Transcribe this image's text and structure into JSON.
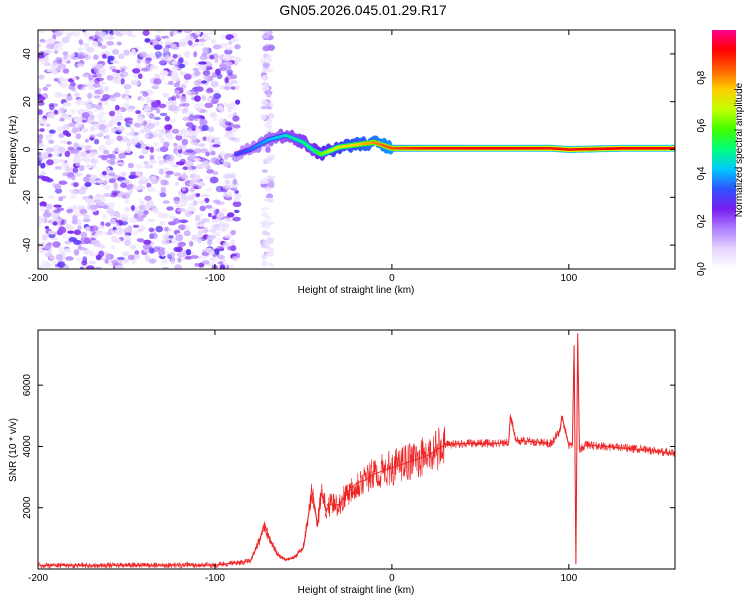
{
  "title": "GN05.2026.045.01.29.R17",
  "chart_data": [
    {
      "type": "heatmap",
      "name": "spectrogram",
      "xlabel": "Height of straight line (km)",
      "ylabel": "Frequency (Hz)",
      "xlim": [
        -200,
        160
      ],
      "ylim": [
        -50,
        50
      ],
      "xticks": [
        -200,
        -100,
        0,
        100
      ],
      "yticks": [
        -40,
        -20,
        0,
        20,
        40
      ],
      "colorbar": {
        "label": "Normalized spectral amplitude",
        "range": [
          0,
          1
        ],
        "ticks": [
          "0.0",
          "0.2",
          "0.4",
          "0.6",
          "0.8"
        ],
        "colors": [
          "#ffffff",
          "#e6d6ff",
          "#b080ff",
          "#7a1ff0",
          "#3050ff",
          "#00c8ff",
          "#00ff80",
          "#40ff00",
          "#c0ff00",
          "#ffd000",
          "#ff6000",
          "#ff0000",
          "#ff0090"
        ]
      },
      "noise_region": {
        "x": [
          -200,
          -87
        ],
        "freq": [
          -50,
          50
        ],
        "amplitude": [
          0.05,
          0.3
        ]
      },
      "noise_stripe": {
        "x": [
          -73,
          -68
        ],
        "freq": [
          -50,
          50
        ],
        "amplitude": [
          0.05,
          0.2
        ]
      },
      "signal_track": [
        {
          "x": -88,
          "f": -2,
          "a": 0.3
        },
        {
          "x": -80,
          "f": 0,
          "a": 0.35
        },
        {
          "x": -70,
          "f": 4,
          "a": 0.4
        },
        {
          "x": -60,
          "f": 6,
          "a": 0.45
        },
        {
          "x": -50,
          "f": 3,
          "a": 0.5
        },
        {
          "x": -45,
          "f": 0,
          "a": 0.5
        },
        {
          "x": -40,
          "f": -2,
          "a": 0.6
        },
        {
          "x": -30,
          "f": 1,
          "a": 0.7
        },
        {
          "x": -20,
          "f": 2,
          "a": 0.75
        },
        {
          "x": -10,
          "f": 3,
          "a": 0.8
        },
        {
          "x": 0,
          "f": 0.5,
          "a": 0.85
        },
        {
          "x": 20,
          "f": 0.5,
          "a": 0.9
        },
        {
          "x": 60,
          "f": 0.5,
          "a": 0.92
        },
        {
          "x": 90,
          "f": 0.5,
          "a": 0.9
        },
        {
          "x": 100,
          "f": 0,
          "a": 0.9
        },
        {
          "x": 130,
          "f": 0.5,
          "a": 0.92
        },
        {
          "x": 160,
          "f": 0.5,
          "a": 0.92
        }
      ]
    },
    {
      "type": "line",
      "name": "snr",
      "xlabel": "Height of straight line (km)",
      "ylabel": "SNR (10 * v/v)",
      "xlim": [
        -200,
        160
      ],
      "ylim": [
        0,
        7800
      ],
      "xticks": [
        -200,
        -100,
        0,
        100
      ],
      "yticks": [
        2000,
        4000,
        6000
      ],
      "color": "#ee2222",
      "x": [
        -200,
        -150,
        -100,
        -80,
        -75,
        -72,
        -70,
        -65,
        -60,
        -55,
        -50,
        -47,
        -45,
        -42,
        -40,
        -37,
        -35,
        -30,
        -25,
        -20,
        -15,
        -10,
        -5,
        0,
        10,
        20,
        30,
        40,
        50,
        60,
        66,
        67,
        70,
        80,
        90,
        95,
        96,
        100,
        102,
        103,
        104,
        105,
        106,
        110,
        120,
        130,
        140,
        150,
        160
      ],
      "y": [
        120,
        120,
        130,
        250,
        900,
        1500,
        1100,
        500,
        300,
        400,
        700,
        1800,
        2500,
        1400,
        2500,
        1900,
        2100,
        2100,
        2500,
        2800,
        2900,
        3100,
        3200,
        3300,
        3500,
        3700,
        4050,
        4100,
        4100,
        4100,
        4150,
        5000,
        4200,
        4150,
        4100,
        4500,
        5000,
        4050,
        4050,
        7300,
        150,
        7700,
        3900,
        4050,
        4000,
        3950,
        3900,
        3850,
        3750
      ]
    }
  ]
}
